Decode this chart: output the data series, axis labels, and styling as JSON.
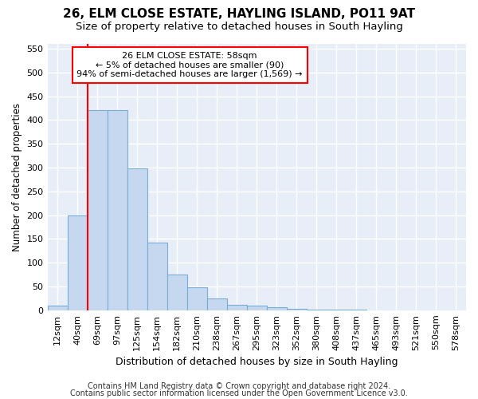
{
  "title": "26, ELM CLOSE ESTATE, HAYLING ISLAND, PO11 9AT",
  "subtitle": "Size of property relative to detached houses in South Hayling",
  "xlabel": "Distribution of detached houses by size in South Hayling",
  "ylabel": "Number of detached properties",
  "footer1": "Contains HM Land Registry data © Crown copyright and database right 2024.",
  "footer2": "Contains public sector information licensed under the Open Government Licence v3.0.",
  "bin_labels": [
    "12sqm",
    "40sqm",
    "69sqm",
    "97sqm",
    "125sqm",
    "154sqm",
    "182sqm",
    "210sqm",
    "238sqm",
    "267sqm",
    "295sqm",
    "323sqm",
    "352sqm",
    "380sqm",
    "408sqm",
    "437sqm",
    "465sqm",
    "493sqm",
    "521sqm",
    "550sqm",
    "578sqm"
  ],
  "bar_heights": [
    10,
    200,
    420,
    420,
    298,
    142,
    76,
    49,
    24,
    12,
    9,
    7,
    3,
    2,
    1,
    1,
    0,
    0,
    0,
    0,
    0
  ],
  "bar_color": "#c5d8f0",
  "bar_edge_color": "#7aadd4",
  "vline_color": "red",
  "annotation_text": "26 ELM CLOSE ESTATE: 58sqm\n← 5% of detached houses are smaller (90)\n94% of semi-detached houses are larger (1,569) →",
  "annotation_box_color": "white",
  "annotation_border_color": "red",
  "ylim": [
    0,
    560
  ],
  "yticks": [
    0,
    50,
    100,
    150,
    200,
    250,
    300,
    350,
    400,
    450,
    500,
    550
  ],
  "bg_color": "#ffffff",
  "plot_bg_color": "#e8eef8",
  "grid_color": "#ffffff",
  "title_fontsize": 11,
  "subtitle_fontsize": 9.5,
  "xlabel_fontsize": 9,
  "ylabel_fontsize": 8.5,
  "tick_fontsize": 8,
  "annotation_fontsize": 8,
  "footer_fontsize": 7
}
